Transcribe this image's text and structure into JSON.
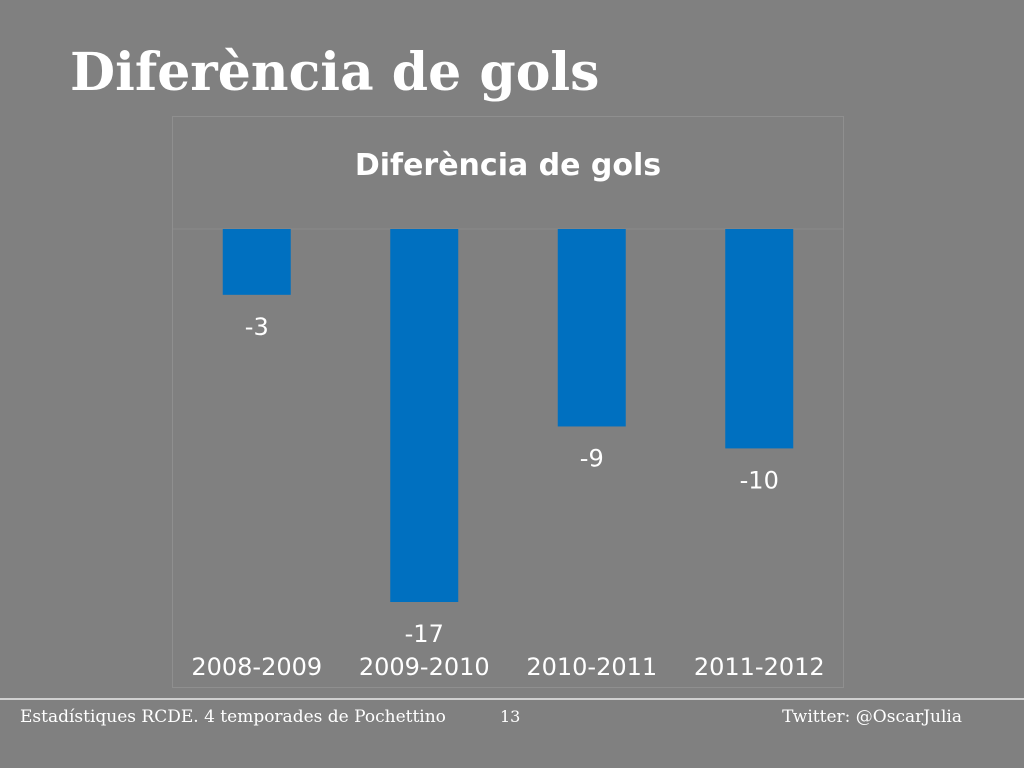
{
  "slide": {
    "title": "Diferència de gols"
  },
  "chart_data": {
    "type": "bar",
    "title": "Diferència de gols",
    "categories": [
      "2008-2009",
      "2009-2010",
      "2010-2011",
      "2011-2012"
    ],
    "values": [
      -3,
      -17,
      -9,
      -10
    ],
    "data_labels": [
      "-3",
      "-17",
      "-9",
      "-10"
    ],
    "xlabel": "",
    "ylabel": "",
    "ylim": [
      -17,
      0
    ],
    "grid": false,
    "legend": "none",
    "bar_color": "#0070C0"
  },
  "footer": {
    "left_text": "Estadístiques RCDE. 4 temporades de Pochettino",
    "page_number": "13",
    "right_text": "Twitter: @OscarJulia"
  }
}
